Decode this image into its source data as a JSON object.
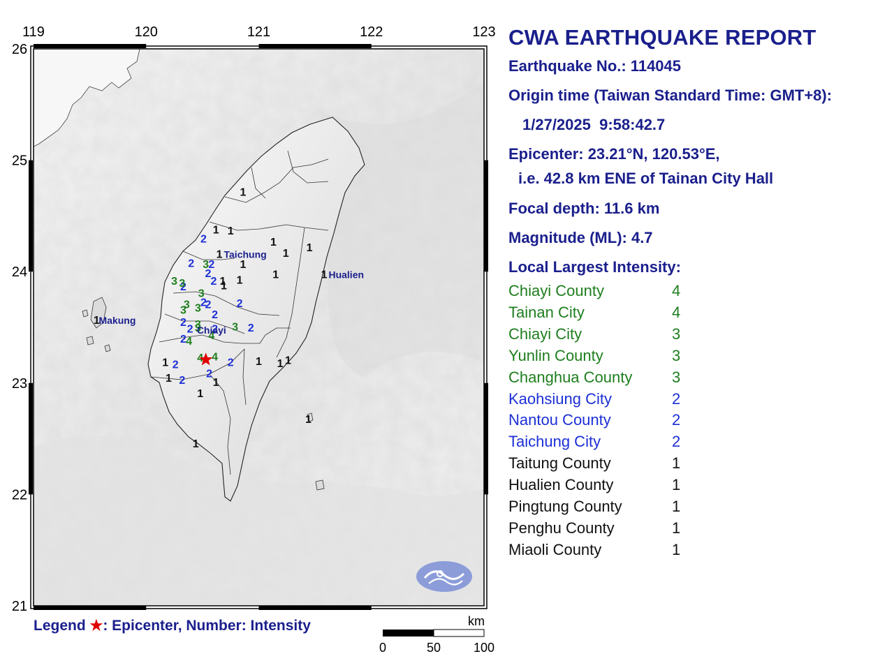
{
  "report": {
    "title": "CWA EARTHQUAKE REPORT",
    "earthquake_no": "Earthquake No.: 114045",
    "origin_label": "Origin time (Taiwan Standard Time: GMT+8):",
    "origin_time": "1/27/2025  9:58:42.7",
    "epicenter": "Epicenter: 23.21°N, 120.53°E,",
    "epicenter_ref": "i.e. 42.8 km ENE of Tainan City Hall",
    "depth": "Focal depth: 11.6 km",
    "magnitude": "Magnitude (ML): 4.7",
    "intensity_header": "Local Largest Intensity:"
  },
  "intensities": [
    {
      "area": "Chiayi County",
      "value": "4",
      "color": "#1e7e1e"
    },
    {
      "area": "Tainan City",
      "value": "4",
      "color": "#1e7e1e"
    },
    {
      "area": "Chiayi City",
      "value": "3",
      "color": "#1e7e1e"
    },
    {
      "area": "Yunlin County",
      "value": "3",
      "color": "#1e7e1e"
    },
    {
      "area": "Changhua County",
      "value": "3",
      "color": "#1e7e1e"
    },
    {
      "area": "Kaohsiung City",
      "value": "2",
      "color": "#1c2fd6"
    },
    {
      "area": "Nantou County",
      "value": "2",
      "color": "#1c2fd6"
    },
    {
      "area": "Taichung City",
      "value": "2",
      "color": "#1c2fd6"
    },
    {
      "area": "Taitung County",
      "value": "1",
      "color": "#111111"
    },
    {
      "area": "Hualien County",
      "value": "1",
      "color": "#111111"
    },
    {
      "area": "Pingtung County",
      "value": "1",
      "color": "#111111"
    },
    {
      "area": "Penghu County",
      "value": "1",
      "color": "#111111"
    },
    {
      "area": "Miaoli County",
      "value": "1",
      "color": "#111111"
    }
  ],
  "map": {
    "lon_labels": [
      "119",
      "120",
      "121",
      "122",
      "123"
    ],
    "lat_labels": [
      "26",
      "25",
      "24",
      "23",
      "22",
      "21"
    ],
    "lon_range": [
      119,
      123
    ],
    "lat_range": [
      21,
      26
    ],
    "epicenter": {
      "lat": 23.21,
      "lon": 120.53,
      "color": "#e00000",
      "icon": "star-icon"
    },
    "cities": [
      {
        "name": "Taichung",
        "lat": 24.16,
        "lon": 120.69
      },
      {
        "name": "Hualien",
        "lat": 23.98,
        "lon": 121.62
      },
      {
        "name": "Makung",
        "lat": 23.57,
        "lon": 119.58
      },
      {
        "name": "Chiayi",
        "lat": 23.48,
        "lon": 120.45
      }
    ],
    "stations": [
      {
        "v": "1",
        "lat": 24.72,
        "lon": 120.86
      },
      {
        "v": "1",
        "lat": 24.38,
        "lon": 120.62
      },
      {
        "v": "1",
        "lat": 24.37,
        "lon": 120.75
      },
      {
        "v": "1",
        "lat": 24.27,
        "lon": 121.13
      },
      {
        "v": "1",
        "lat": 24.22,
        "lon": 121.45
      },
      {
        "v": "1",
        "lat": 24.17,
        "lon": 121.24
      },
      {
        "v": "1",
        "lat": 24.16,
        "lon": 120.65
      },
      {
        "v": "1",
        "lat": 24.07,
        "lon": 120.86
      },
      {
        "v": "1",
        "lat": 23.98,
        "lon": 121.15
      },
      {
        "v": "1",
        "lat": 23.98,
        "lon": 121.58
      },
      {
        "v": "1",
        "lat": 23.93,
        "lon": 120.83
      },
      {
        "v": "1",
        "lat": 23.92,
        "lon": 120.68
      },
      {
        "v": "1",
        "lat": 23.88,
        "lon": 120.69
      },
      {
        "v": "1",
        "lat": 23.57,
        "lon": 119.56
      },
      {
        "v": "1",
        "lat": 23.19,
        "lon": 120.17
      },
      {
        "v": "1",
        "lat": 23.05,
        "lon": 120.2
      },
      {
        "v": "1",
        "lat": 23.01,
        "lon": 120.62
      },
      {
        "v": "1",
        "lat": 22.91,
        "lon": 120.48
      },
      {
        "v": "1",
        "lat": 23.2,
        "lon": 121.0
      },
      {
        "v": "1",
        "lat": 23.18,
        "lon": 121.19
      },
      {
        "v": "1",
        "lat": 23.21,
        "lon": 121.26
      },
      {
        "v": "1",
        "lat": 22.68,
        "lon": 121.44
      },
      {
        "v": "1",
        "lat": 22.46,
        "lon": 120.44
      },
      {
        "v": "2",
        "lat": 24.3,
        "lon": 120.51
      },
      {
        "v": "2",
        "lat": 24.08,
        "lon": 120.4
      },
      {
        "v": "2",
        "lat": 24.07,
        "lon": 120.58
      },
      {
        "v": "2",
        "lat": 23.99,
        "lon": 120.55
      },
      {
        "v": "2",
        "lat": 23.92,
        "lon": 120.6
      },
      {
        "v": "2",
        "lat": 23.87,
        "lon": 120.33
      },
      {
        "v": "2",
        "lat": 23.73,
        "lon": 120.51
      },
      {
        "v": "2",
        "lat": 23.71,
        "lon": 120.55
      },
      {
        "v": "2",
        "lat": 23.72,
        "lon": 120.83
      },
      {
        "v": "2",
        "lat": 23.62,
        "lon": 120.61
      },
      {
        "v": "2",
        "lat": 23.55,
        "lon": 120.33
      },
      {
        "v": "2",
        "lat": 23.49,
        "lon": 120.39
      },
      {
        "v": "2",
        "lat": 23.4,
        "lon": 120.33
      },
      {
        "v": "2",
        "lat": 23.49,
        "lon": 120.61
      },
      {
        "v": "2",
        "lat": 23.5,
        "lon": 120.93
      },
      {
        "v": "2",
        "lat": 23.17,
        "lon": 120.26
      },
      {
        "v": "2",
        "lat": 23.03,
        "lon": 120.32
      },
      {
        "v": "2",
        "lat": 23.09,
        "lon": 120.56
      },
      {
        "v": "2",
        "lat": 23.19,
        "lon": 120.75
      },
      {
        "v": "3",
        "lat": 24.07,
        "lon": 120.53
      },
      {
        "v": "3",
        "lat": 23.92,
        "lon": 120.25
      },
      {
        "v": "3",
        "lat": 23.9,
        "lon": 120.32
      },
      {
        "v": "3",
        "lat": 23.81,
        "lon": 120.49
      },
      {
        "v": "3",
        "lat": 23.71,
        "lon": 120.36
      },
      {
        "v": "3",
        "lat": 23.68,
        "lon": 120.46
      },
      {
        "v": "3",
        "lat": 23.66,
        "lon": 120.33
      },
      {
        "v": "3",
        "lat": 23.53,
        "lon": 120.46
      },
      {
        "v": "3",
        "lat": 23.5,
        "lon": 120.46
      },
      {
        "v": "3",
        "lat": 23.51,
        "lon": 120.79
      },
      {
        "v": "4",
        "lat": 23.43,
        "lon": 120.58
      },
      {
        "v": "4",
        "lat": 23.38,
        "lon": 120.38
      },
      {
        "v": "4",
        "lat": 23.23,
        "lon": 120.48
      },
      {
        "v": "4",
        "lat": 23.24,
        "lon": 120.61
      }
    ],
    "station_colors": {
      "1": "#111111",
      "2": "#1c2fd6",
      "3": "#1e7e1e",
      "4": "#1e7e1e"
    },
    "logo_color": "#6f84d6"
  },
  "legend": {
    "label": "Legend",
    "star": "★",
    "text": ": Epicenter, Number: Intensity"
  },
  "scale": {
    "unit": "km",
    "labels": [
      "0",
      "50",
      "100"
    ]
  }
}
